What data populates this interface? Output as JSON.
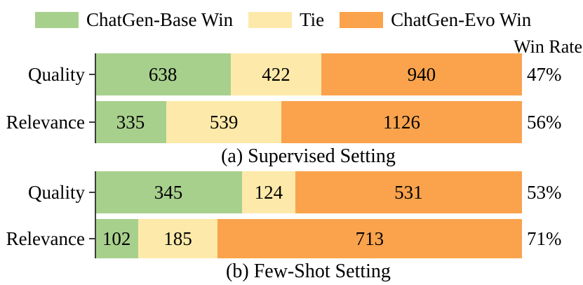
{
  "background": "#ffffff",
  "text_color": "#000000",
  "axis_color": "#3d3d3d",
  "legend": {
    "items": [
      {
        "label": "ChatGen-Base Win",
        "color": "#a8d08d"
      },
      {
        "label": "Tie",
        "color": "#fde9a9"
      },
      {
        "label": "ChatGen-Evo Win",
        "color": "#faa34c"
      }
    ]
  },
  "win_rate_header": "Win Rate",
  "chart_data": [
    {
      "type": "bar",
      "orientation": "horizontal",
      "stacked": true,
      "grid": false,
      "legend_position": "top",
      "title": "(a) Supervised Setting",
      "categories": [
        "Quality",
        "Relevance"
      ],
      "series": [
        {
          "name": "ChatGen-Base Win",
          "color": "#a8d08d",
          "values": [
            638,
            335
          ]
        },
        {
          "name": "Tie",
          "color": "#fde9a9",
          "values": [
            422,
            539
          ]
        },
        {
          "name": "ChatGen-Evo Win",
          "color": "#faa34c",
          "values": [
            940,
            1126
          ]
        }
      ],
      "row_totals": [
        2000,
        2000
      ],
      "win_rates": [
        "47%",
        "56%"
      ]
    },
    {
      "type": "bar",
      "orientation": "horizontal",
      "stacked": true,
      "grid": false,
      "legend_position": "top",
      "title": "(b) Few-Shot Setting",
      "categories": [
        "Quality",
        "Relevance"
      ],
      "series": [
        {
          "name": "ChatGen-Base Win",
          "color": "#a8d08d",
          "values": [
            345,
            102
          ]
        },
        {
          "name": "Tie",
          "color": "#fde9a9",
          "values": [
            124,
            185
          ]
        },
        {
          "name": "ChatGen-Evo Win",
          "color": "#faa34c",
          "values": [
            531,
            713
          ]
        }
      ],
      "row_totals": [
        1000,
        1000
      ],
      "win_rates": [
        "53%",
        "71%"
      ]
    }
  ]
}
